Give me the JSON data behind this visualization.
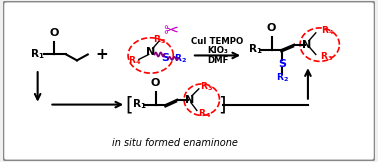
{
  "bg_color": "#f0f0f0",
  "border_color": "#888888",
  "conditions_line1": "CuI TEMPO",
  "conditions_line2": "KIO₃",
  "conditions_line3": "DMF",
  "in_situ_text": "in situ formed enaminone",
  "figsize": [
    3.78,
    1.62
  ],
  "dpi": 100
}
